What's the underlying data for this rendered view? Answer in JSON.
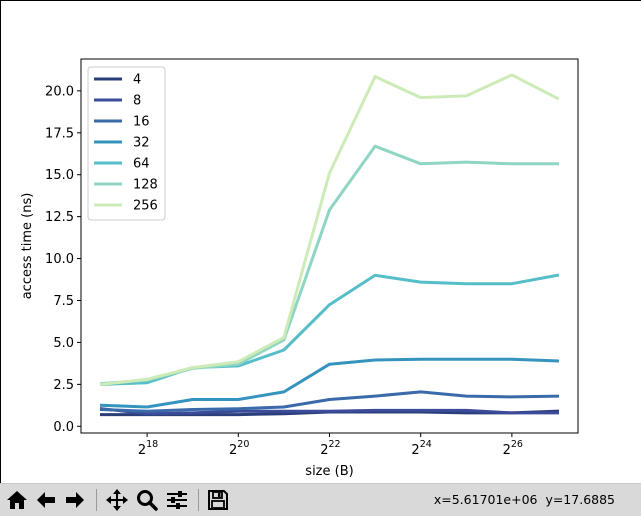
{
  "chart_data": {
    "type": "line",
    "x_exponents": [
      17,
      18,
      19,
      20,
      21,
      22,
      23,
      24,
      25,
      26,
      27
    ],
    "x_tick_exponents": [
      18,
      20,
      22,
      24,
      26
    ],
    "x_tick_base": "2",
    "xlabel": "size (B)",
    "ylabel": "access time (ns)",
    "yticks": [
      "0.0",
      "2.5",
      "5.0",
      "7.5",
      "10.0",
      "12.5",
      "15.0",
      "17.5",
      "20.0"
    ],
    "xlim": [
      16.55,
      27.45
    ],
    "ylim": [
      -0.4,
      21.9
    ],
    "legend_position": "upper-left",
    "series": [
      {
        "name": "4",
        "color": "#2a3f7a",
        "values": [
          0.7,
          0.7,
          0.7,
          0.7,
          0.75,
          0.85,
          0.85,
          0.85,
          0.8,
          0.8,
          0.9
        ]
      },
      {
        "name": "8",
        "color": "#3b4b9a",
        "values": [
          1.05,
          0.75,
          0.8,
          0.9,
          0.9,
          0.9,
          0.95,
          0.95,
          0.95,
          0.8,
          0.8
        ]
      },
      {
        "name": "16",
        "color": "#3a6aaa",
        "values": [
          1.0,
          0.9,
          1.0,
          1.05,
          1.15,
          1.6,
          1.8,
          2.05,
          1.8,
          1.75,
          1.8
        ]
      },
      {
        "name": "32",
        "color": "#3594be",
        "values": [
          1.25,
          1.15,
          1.6,
          1.6,
          2.05,
          3.7,
          3.95,
          4.0,
          4.0,
          4.0,
          3.9
        ]
      },
      {
        "name": "64",
        "color": "#56bec8",
        "values": [
          2.5,
          2.6,
          3.5,
          3.6,
          4.55,
          7.25,
          9.0,
          8.6,
          8.5,
          8.5,
          9.0
        ]
      },
      {
        "name": "128",
        "color": "#8fd5c3",
        "values": [
          2.55,
          2.75,
          3.45,
          3.7,
          5.15,
          12.9,
          16.7,
          15.65,
          15.75,
          15.65,
          15.65
        ]
      },
      {
        "name": "256",
        "color": "#cdebb7",
        "values": [
          2.5,
          2.8,
          3.5,
          3.85,
          5.3,
          15.1,
          20.85,
          19.6,
          19.7,
          20.95,
          19.55
        ]
      }
    ]
  },
  "toolbar": {
    "buttons": [
      {
        "name": "home-button",
        "icon": "home-icon"
      },
      {
        "name": "back-button",
        "icon": "arrow-left-icon"
      },
      {
        "name": "forward-button",
        "icon": "arrow-right-icon"
      },
      {
        "name": "pan-button",
        "icon": "move-icon"
      },
      {
        "name": "zoom-button",
        "icon": "magnifier-icon"
      },
      {
        "name": "configure-subplots-button",
        "icon": "sliders-icon"
      },
      {
        "name": "save-button",
        "icon": "floppy-icon"
      }
    ],
    "coords": "x=5.61701e+06  y=17.6885"
  }
}
